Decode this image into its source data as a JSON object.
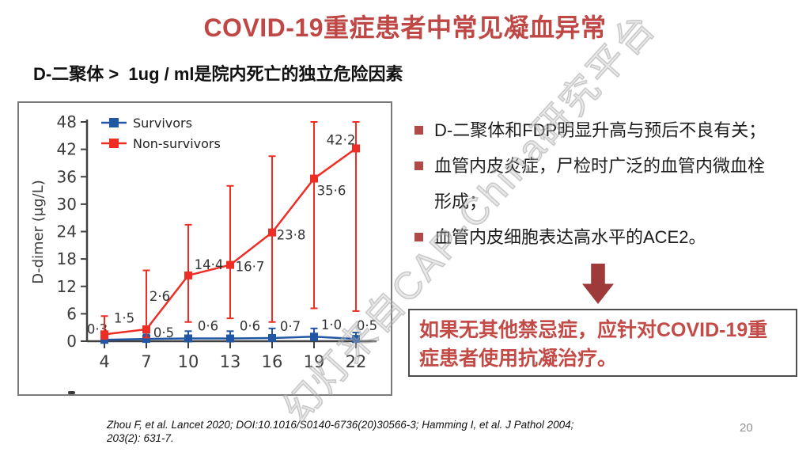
{
  "slide": {
    "title": "COVID-19重症患者中常见凝血异常",
    "subtitle": "D-二聚体 >  1ug / ml是院内死亡的独立危险因素",
    "bullets": [
      "D-二聚体和FDP明显升高与预后不良有关；",
      "血管内皮炎症，尸检时广泛的血管内微血栓形成；",
      "血管内皮细胞表达高水平的ACE2。"
    ],
    "callout": "如果无其他禁忌症，应针对COVID-19重症患者使用抗凝治疗。",
    "citation_lines": [
      "Zhou F, et al. Lancet  2020; DOI:10.1016/S0140-6736(20)30566-3; Hamming I, et al.  J Pathol 2004;",
      "203(2): 631-7."
    ],
    "page_number": "20",
    "watermark": "幻灯来自CAP-China研究平台",
    "colors": {
      "title_red": "#BF4846",
      "callout_red": "#C24B47",
      "arrow_red": "#9E3B3A",
      "bullet_red": "#B04A46",
      "page_gray": "#8f8f8f",
      "panel_border": "#7b7b7b"
    }
  },
  "chart_data": {
    "type": "line",
    "title": "",
    "xlabel": "",
    "ylabel": "D-dimer (μg/L)",
    "x": [
      4,
      7,
      10,
      13,
      16,
      19,
      22
    ],
    "ylim": [
      0,
      48
    ],
    "yticks": [
      0,
      6,
      12,
      18,
      24,
      30,
      36,
      42,
      48
    ],
    "grid": false,
    "legend_position": "top-left",
    "series": [
      {
        "name": "Survivors",
        "color": "#2156A5",
        "marker": "square",
        "values": [
          0.3,
          0.5,
          0.6,
          0.6,
          0.7,
          1.0,
          0.5
        ],
        "labels": [
          "0·3",
          "0·5",
          "0·6",
          "0·6",
          "0·7",
          "1·0",
          "0·5"
        ],
        "err_low": [
          0.1,
          0.1,
          0.1,
          0.1,
          0.1,
          0.2,
          0.1
        ],
        "err_high": [
          1.2,
          1.5,
          2.2,
          2.2,
          2.8,
          2.8,
          1.9
        ]
      },
      {
        "name": "Non-survivors",
        "color": "#EE2E24",
        "marker": "square",
        "values": [
          1.5,
          2.6,
          14.4,
          16.7,
          23.8,
          35.6,
          42.2
        ],
        "labels": [
          "1·5",
          "2·6",
          "14·4",
          "16·7",
          "23·8",
          "35·6",
          "42·2"
        ],
        "err_low": [
          0.5,
          0.8,
          4.2,
          5.0,
          4.2,
          7.2,
          6.6
        ],
        "err_high": [
          5.5,
          15.5,
          25.5,
          34.0,
          40.5,
          48.0,
          48.0
        ]
      }
    ]
  }
}
